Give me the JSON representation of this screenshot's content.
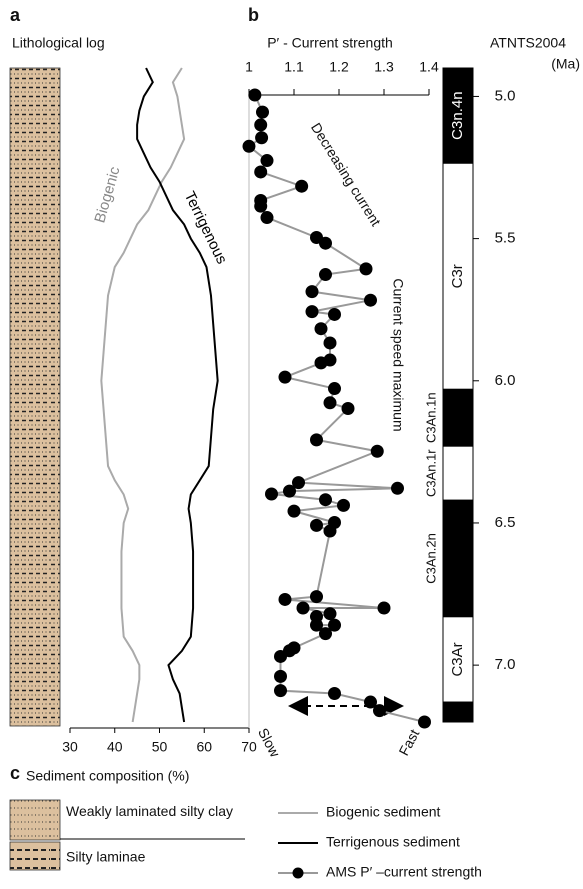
{
  "chart_data": [
    {
      "type": "line",
      "panel_label": "a",
      "title": "Lithological log",
      "xlabel": "Sediment composition (%)",
      "xlim": [
        30,
        70
      ],
      "xticks": [
        30,
        40,
        50,
        60,
        70
      ],
      "ylim": [
        4.9,
        7.2
      ],
      "series": [
        {
          "name": "Biogenic sediment",
          "label": "Biogenic",
          "color": "#aaaaaa",
          "ages": [
            4.9,
            4.95,
            5.0,
            5.05,
            5.1,
            5.15,
            5.2,
            5.25,
            5.3,
            5.35,
            5.4,
            5.45,
            5.5,
            5.55,
            5.6,
            5.7,
            5.8,
            5.9,
            6.0,
            6.1,
            6.2,
            6.3,
            6.35,
            6.4,
            6.45,
            6.5,
            6.6,
            6.7,
            6.8,
            6.9,
            6.95,
            7.0,
            7.05,
            7.1,
            7.15,
            7.2
          ],
          "values": [
            55,
            53,
            54,
            54.5,
            55,
            55.5,
            54,
            52.5,
            50.5,
            49,
            47.5,
            45,
            43.5,
            42,
            40,
            38.5,
            38,
            37.5,
            37,
            37.5,
            38,
            38.5,
            40,
            42,
            43,
            42,
            41.5,
            41.5,
            41.5,
            42,
            44,
            45.5,
            45.5,
            45,
            44.5,
            44
          ]
        },
        {
          "name": "Terrigenous sediment",
          "label": "Terrigenous",
          "color": "#000000",
          "ages": [
            4.9,
            4.95,
            5.0,
            5.05,
            5.1,
            5.15,
            5.2,
            5.25,
            5.3,
            5.35,
            5.4,
            5.45,
            5.5,
            5.55,
            5.6,
            5.7,
            5.8,
            5.9,
            6.0,
            6.1,
            6.2,
            6.3,
            6.35,
            6.4,
            6.45,
            6.5,
            6.6,
            6.7,
            6.8,
            6.9,
            6.95,
            7.0,
            7.05,
            7.1,
            7.15,
            7.2
          ],
          "values": [
            47,
            48.5,
            46.5,
            45.5,
            45,
            45,
            46.5,
            48,
            50,
            51.5,
            53,
            55.5,
            57,
            59,
            60.5,
            61.5,
            62,
            62.5,
            63,
            62,
            61.5,
            61,
            59,
            57,
            56.5,
            57,
            57.5,
            57.5,
            57.5,
            57,
            55,
            52,
            53,
            54.5,
            55,
            55.5
          ]
        }
      ]
    },
    {
      "type": "scatter",
      "panel_label": "b",
      "title": "P′ - Current strength",
      "xlim": [
        1,
        1.4
      ],
      "xticks": [
        1,
        1.1,
        1.2,
        1.3,
        1.4
      ],
      "ylim": [
        5,
        7.2
      ],
      "annotations": [
        "Decreasing current",
        "Current speed maximum"
      ],
      "arrow_labels": [
        "Slow",
        "Fast"
      ],
      "series": [
        {
          "name": "AMS P′ –current strength",
          "color": "#000000",
          "line_color": "#999999",
          "ages": [
            5.0,
            5.06,
            5.105,
            5.15,
            5.18,
            5.23,
            5.27,
            5.32,
            5.37,
            5.39,
            5.43,
            5.5,
            5.52,
            5.61,
            5.63,
            5.69,
            5.72,
            5.76,
            5.77,
            5.82,
            5.87,
            5.93,
            5.94,
            5.99,
            6.03,
            6.08,
            6.1,
            6.21,
            6.25,
            6.36,
            6.38,
            6.39,
            6.4,
            6.42,
            6.44,
            6.46,
            6.5,
            6.51,
            6.53,
            6.76,
            6.77,
            6.8,
            6.8,
            6.82,
            6.83,
            6.86,
            6.86,
            6.89,
            6.94,
            6.95,
            6.97,
            7.04,
            7.09,
            7.1,
            7.13,
            7.16,
            7.2
          ],
          "values": [
            1.013,
            1.03,
            1.026,
            1.028,
            1.0,
            1.04,
            1.026,
            1.117,
            1.026,
            1.026,
            1.04,
            1.15,
            1.17,
            1.26,
            1.17,
            1.14,
            1.27,
            1.14,
            1.19,
            1.16,
            1.18,
            1.18,
            1.16,
            1.08,
            1.19,
            1.18,
            1.22,
            1.15,
            1.285,
            1.11,
            1.33,
            1.09,
            1.05,
            1.17,
            1.21,
            1.1,
            1.19,
            1.15,
            1.18,
            1.15,
            1.08,
            1.3,
            1.12,
            1.18,
            1.15,
            1.15,
            1.19,
            1.17,
            1.1,
            1.09,
            1.07,
            1.07,
            1.07,
            1.19,
            1.27,
            1.29,
            1.39
          ]
        }
      ]
    },
    {
      "type": "timescale",
      "title": "ATNTS2004",
      "ylabel": "(Ma)",
      "ylim": [
        4.9,
        7.2
      ],
      "yticks": [
        {
          "value": 5,
          "label": "5.0"
        },
        5.5,
        {
          "value": 6,
          "label": "6.0"
        },
        6.5,
        {
          "value": 7,
          "label": "7.0"
        }
      ],
      "chrons": [
        {
          "name": "C3n.4n",
          "polarity": "normal",
          "top": 4.9,
          "base": 5.235,
          "label_outside": false
        },
        {
          "name": "C3r",
          "polarity": "reversed",
          "top": 5.235,
          "base": 6.03,
          "label_outside": false
        },
        {
          "name": "C3An.1n",
          "polarity": "normal",
          "top": 6.03,
          "base": 6.23,
          "label_outside": true
        },
        {
          "name": "C3An.1r",
          "polarity": "reversed",
          "top": 6.23,
          "base": 6.42,
          "label_outside": true
        },
        {
          "name": "C3An.2n",
          "polarity": "normal",
          "top": 6.42,
          "base": 6.83,
          "label_outside": true
        },
        {
          "name": "C3Ar",
          "polarity": "reversed",
          "top": 6.83,
          "base": 7.13,
          "label_outside": false
        },
        {
          "name": null,
          "polarity": "normal",
          "top": 7.13,
          "base": 7.2,
          "label_outside": false
        }
      ]
    }
  ],
  "lithology": {
    "panel_label": "c",
    "items": [
      "Weakly laminated silty clay",
      "Silty laminae"
    ]
  }
}
